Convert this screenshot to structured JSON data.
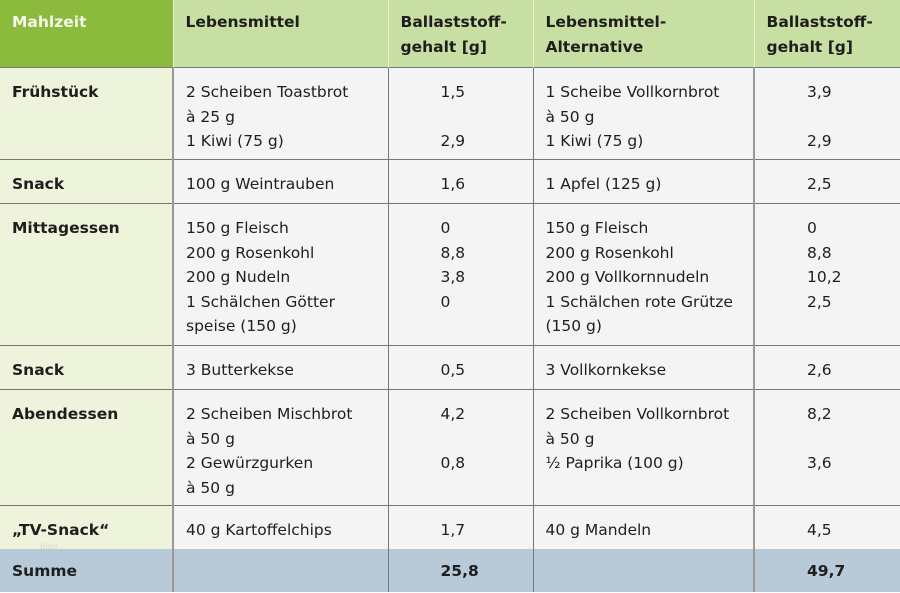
{
  "table": {
    "headers": {
      "meal": "Mahlzeit",
      "food": "Lebensmittel",
      "fiber1_line1": "Ballaststoff-",
      "fiber1_line2": "gehalt [g]",
      "alt_line1": "Lebensmittel-",
      "alt_line2": "Alternative",
      "fiber2_line1": "Ballaststoff-",
      "fiber2_line2": "gehalt [g]"
    },
    "rows": [
      {
        "meal": "Frühstück",
        "food": [
          "2 Scheiben Toastbrot",
          "à 25 g",
          "1 Kiwi (75 g)"
        ],
        "fiber": [
          "1,5",
          "",
          "2,9"
        ],
        "alt": [
          "1 Scheibe Vollkornbrot",
          "à 50 g",
          "1 Kiwi (75 g)"
        ],
        "alt_fiber": [
          "3,9",
          "",
          "2,9"
        ]
      },
      {
        "meal": "Snack",
        "food": [
          "100 g Weintrauben"
        ],
        "fiber": [
          "1,6"
        ],
        "alt": [
          "1 Apfel (125 g)"
        ],
        "alt_fiber": [
          "2,5"
        ]
      },
      {
        "meal": "Mittagessen",
        "food": [
          "150 g Fleisch",
          "200 g Rosenkohl",
          "200 g Nudeln",
          "1 Schälchen Götter",
          "speise (150 g)"
        ],
        "fiber": [
          "0",
          "8,8",
          "3,8",
          "0"
        ],
        "alt": [
          "150 g Fleisch",
          "200 g Rosenkohl",
          "200 g Vollkornnudeln",
          "1 Schälchen rote Grütze",
          "(150 g)"
        ],
        "alt_fiber": [
          "0",
          "8,8",
          "10,2",
          "2,5"
        ]
      },
      {
        "meal": "Snack",
        "food": [
          "3 Butterkekse"
        ],
        "fiber": [
          "0,5"
        ],
        "alt": [
          "3 Vollkornkekse"
        ],
        "alt_fiber": [
          "2,6"
        ]
      },
      {
        "meal": "Abendessen",
        "food": [
          "2 Scheiben Mischbrot",
          "à 50 g",
          "2 Gewürzgurken",
          "à 50 g"
        ],
        "fiber": [
          "4,2",
          "",
          "0,8"
        ],
        "alt": [
          "2 Scheiben Vollkornbrot",
          "à 50 g",
          "½ Paprika (100 g)"
        ],
        "alt_fiber": [
          "8,2",
          "",
          "3,6"
        ]
      },
      {
        "meal": "„TV-Snack“",
        "food": [
          "40 g Kartoffelchips"
        ],
        "fiber": [
          "1,7"
        ],
        "alt": [
          "40 g Mandeln"
        ],
        "alt_fiber": [
          "4,5"
        ]
      }
    ],
    "sum": {
      "label": "Summe",
      "fiber_total": "25,8",
      "alt_fiber_total": "49,7"
    }
  },
  "watermark": "blog",
  "colors": {
    "header_meal_bg": "#8bba3c",
    "header_bg": "#c8dfa3",
    "meal_col_bg": "#eef4dc",
    "cell_bg": "#f4f4f4",
    "sum_bg": "#b8cad8"
  }
}
